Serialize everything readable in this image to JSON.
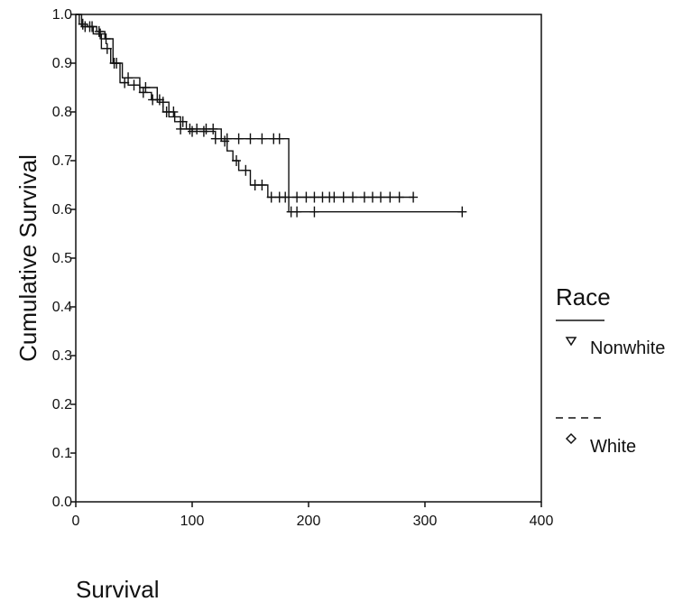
{
  "chart_data": {
    "type": "line",
    "ylabel": "Cumulative Survival",
    "xlabel": "Survival",
    "xlim": [
      0,
      400
    ],
    "ylim": [
      0,
      1.0
    ],
    "x_ticks": [
      {
        "value": 0,
        "label": "0"
      },
      {
        "value": 100,
        "label": "100"
      },
      {
        "value": 200,
        "label": "200"
      },
      {
        "value": 300,
        "label": "300"
      },
      {
        "value": 400,
        "label": "400"
      }
    ],
    "y_ticks": [
      {
        "value": 0.0,
        "label": "0.0"
      },
      {
        "value": 0.1,
        "label": "0.1"
      },
      {
        "value": 0.2,
        "label": "0.2"
      },
      {
        "value": 0.3,
        "label": "0.3"
      },
      {
        "value": 0.4,
        "label": "0.4"
      },
      {
        "value": 0.5,
        "label": "0.5"
      },
      {
        "value": 0.6,
        "label": "0.6"
      },
      {
        "value": 0.7,
        "label": "0.7"
      },
      {
        "value": 0.8,
        "label": "0.8"
      },
      {
        "value": 0.9,
        "label": "0.9"
      },
      {
        "value": 1.0,
        "label": "1.0"
      }
    ],
    "grid": false,
    "legend": {
      "title": "Race",
      "placement": "right",
      "entries": [
        {
          "label": "Nonwhite",
          "line": "solid",
          "marker": "triangle-down"
        },
        {
          "label": "White",
          "line": "dashed",
          "marker": "diamond"
        }
      ]
    },
    "series": [
      {
        "name": "Nonwhite",
        "steps": [
          [
            0,
            1.0
          ],
          [
            3,
            0.98
          ],
          [
            10,
            0.975
          ],
          [
            18,
            0.965
          ],
          [
            25,
            0.95
          ],
          [
            32,
            0.9
          ],
          [
            40,
            0.87
          ],
          [
            55,
            0.85
          ],
          [
            70,
            0.82
          ],
          [
            80,
            0.79
          ],
          [
            90,
            0.765
          ],
          [
            100,
            0.76
          ],
          [
            120,
            0.745
          ],
          [
            183,
            0.595
          ],
          [
            332,
            0.595
          ]
        ],
        "censored_x": [
          6,
          12,
          20,
          26,
          33,
          45,
          60,
          75,
          90,
          100,
          110,
          120,
          130,
          140,
          150,
          160,
          170,
          175,
          185,
          190,
          205,
          332
        ]
      },
      {
        "name": "White",
        "steps": [
          [
            0,
            1.0
          ],
          [
            5,
            0.975
          ],
          [
            15,
            0.96
          ],
          [
            22,
            0.93
          ],
          [
            30,
            0.9
          ],
          [
            38,
            0.86
          ],
          [
            45,
            0.855
          ],
          [
            55,
            0.84
          ],
          [
            65,
            0.825
          ],
          [
            75,
            0.8
          ],
          [
            85,
            0.78
          ],
          [
            95,
            0.765
          ],
          [
            125,
            0.74
          ],
          [
            130,
            0.72
          ],
          [
            135,
            0.7
          ],
          [
            140,
            0.68
          ],
          [
            150,
            0.65
          ],
          [
            165,
            0.625
          ],
          [
            290,
            0.625
          ]
        ],
        "censored_x": [
          8,
          14,
          21,
          27,
          35,
          42,
          50,
          58,
          66,
          72,
          78,
          84,
          92,
          98,
          104,
          112,
          118,
          128,
          138,
          146,
          154,
          160,
          168,
          175,
          180,
          190,
          198,
          205,
          212,
          218,
          222,
          230,
          238,
          248,
          255,
          262,
          270,
          278,
          290
        ]
      }
    ]
  }
}
